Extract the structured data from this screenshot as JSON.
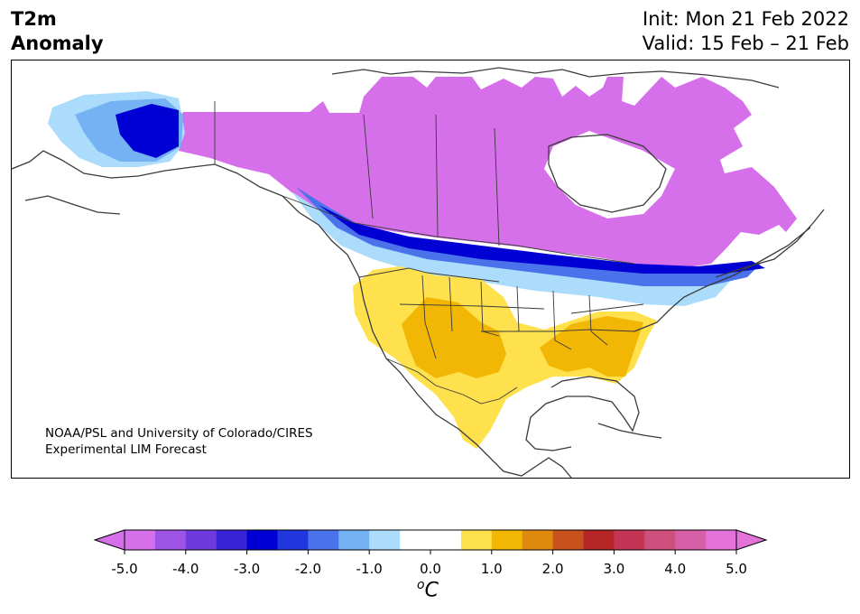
{
  "header": {
    "variable": "T2m",
    "quantity": "Anomaly",
    "init": "Init: Mon 21 Feb 2022",
    "valid": "Valid: 15 Feb – 21 Feb"
  },
  "credit": {
    "line1": "NOAA/PSL and University of Colorado/CIRES",
    "line2": "Experimental LIM Forecast"
  },
  "colorbar": {
    "tick_labels": [
      "-5.0",
      "-4.0",
      "-3.0",
      "-2.0",
      "-1.0",
      "0.0",
      "1.0",
      "2.0",
      "3.0",
      "4.0",
      "5.0"
    ],
    "unit_degree": "o",
    "unit_letter": "C",
    "levels": [
      -5,
      -4.5,
      -4,
      -3.5,
      -3,
      -2.5,
      -2,
      -1.5,
      -1,
      -0.5,
      0.5,
      1,
      1.5,
      2,
      2.5,
      3,
      3.5,
      4,
      4.5,
      5
    ],
    "colors": [
      "#d56fea",
      "#9e55e6",
      "#6e3adf",
      "#3a22d8",
      "#0000d4",
      "#2236e0",
      "#4a72eb",
      "#74b2f3",
      "#abdcfc",
      "#ffffff",
      "#ffe14d",
      "#f2b705",
      "#df8a0f",
      "#c8521b",
      "#b52525",
      "#c33455",
      "#cf4f7c",
      "#d65fa8",
      "#e373d8"
    ],
    "under_color": "#d56fea",
    "over_color": "#e373d8"
  },
  "anomaly_regions": [
    {
      "name": "canada-arctic-cold",
      "color": "#d56fea",
      "value": -5.0
    },
    {
      "name": "northern-tier-cold-core",
      "color": "#0000d4",
      "value": -3.0
    },
    {
      "name": "alaska-west-cold",
      "color": "#74b2f3",
      "value": -1.5
    },
    {
      "name": "southwest-warm",
      "color": "#ffe14d",
      "value": 0.8
    },
    {
      "name": "southern-plains-warm-core",
      "color": "#f2b705",
      "value": 1.3
    },
    {
      "name": "southeast-warm-core",
      "color": "#f2b705",
      "value": 1.3
    }
  ]
}
